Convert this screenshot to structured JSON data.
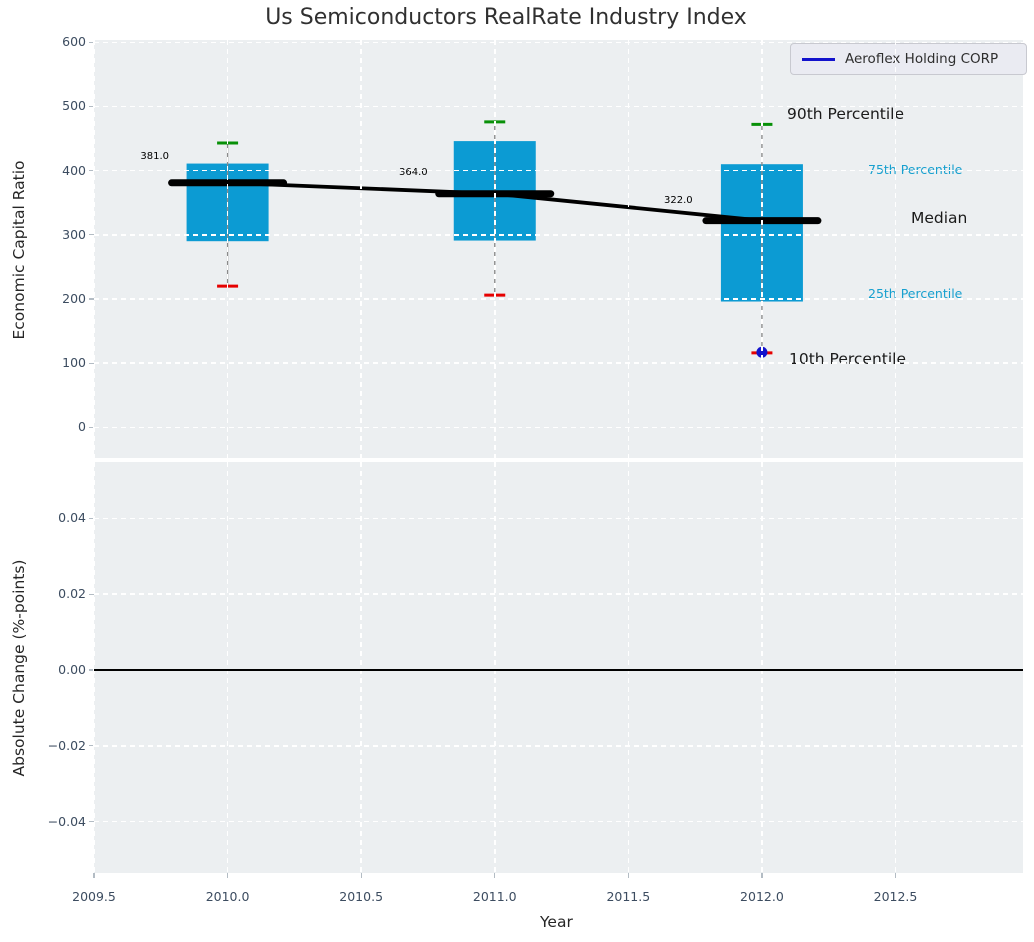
{
  "title": "Us Semiconductors RealRate Industry Index",
  "legend": {
    "label": "Aeroflex Holding CORP",
    "line_color": "#1212CC"
  },
  "chart_data": {
    "type": "box",
    "title": "Us Semiconductors RealRate Industry Index",
    "xlabel": "Year",
    "xlim": [
      2009.5,
      2012.98
    ],
    "grid": true,
    "legend_position": "upper right",
    "xtick_values": [
      2009.5,
      2010.0,
      2010.5,
      2011.0,
      2011.5,
      2012.0,
      2012.5
    ],
    "xtick_labels": [
      "2009.5",
      "2010.0",
      "2010.5",
      "2011.0",
      "2011.5",
      "2012.0",
      "2012.5"
    ],
    "top_panel": {
      "ylabel": "Economic Capital Ratio",
      "ylim": [
        -48,
        604
      ],
      "ytick_values": [
        600,
        500,
        400,
        300,
        200,
        100,
        0
      ],
      "ytick_labels": [
        "600",
        "500",
        "400",
        "300",
        "200",
        "100",
        "0"
      ],
      "box_width_years": 0.31,
      "boxes": [
        {
          "year": 2010,
          "p10": 220,
          "p25": 290,
          "median": 381,
          "p75": 411,
          "p90": 443,
          "median_label": "381.0"
        },
        {
          "year": 2011,
          "p10": 206,
          "p25": 291,
          "median": 364,
          "p75": 446,
          "p90": 476,
          "median_label": "364.0"
        },
        {
          "year": 2012,
          "p10": 116,
          "p25": 196,
          "median": 322,
          "p75": 410,
          "p90": 472,
          "median_label": "322.0"
        }
      ],
      "box_color": "#0C9BD3",
      "whisker_color": "#8a8a8a",
      "p90_cap_color": "#089008",
      "p10_cap_color": "#E60000",
      "median_line_color": "#000000",
      "series": [
        {
          "name": "Aeroflex Holding CORP",
          "color": "#1212CC",
          "points": [
            {
              "x": 2012,
              "y": 117
            }
          ]
        }
      ],
      "annotations": {
        "p90": "90th Percentile",
        "p75": "75th Percentile",
        "median": "Median",
        "p25": "25th Percentile",
        "p10": "10th Percentile"
      },
      "annotation_accent_color": "#17A0CF"
    },
    "bottom_panel": {
      "ylabel": "Absolute Change (%-points)",
      "ylim": [
        -0.054,
        0.055
      ],
      "ytick_values": [
        0.04,
        0.02,
        0.0,
        -0.02,
        -0.04
      ],
      "ytick_labels": [
        "0.04",
        "0.02",
        "0.00",
        "−0.02",
        "−0.04"
      ],
      "zero_line": 0.0
    }
  }
}
